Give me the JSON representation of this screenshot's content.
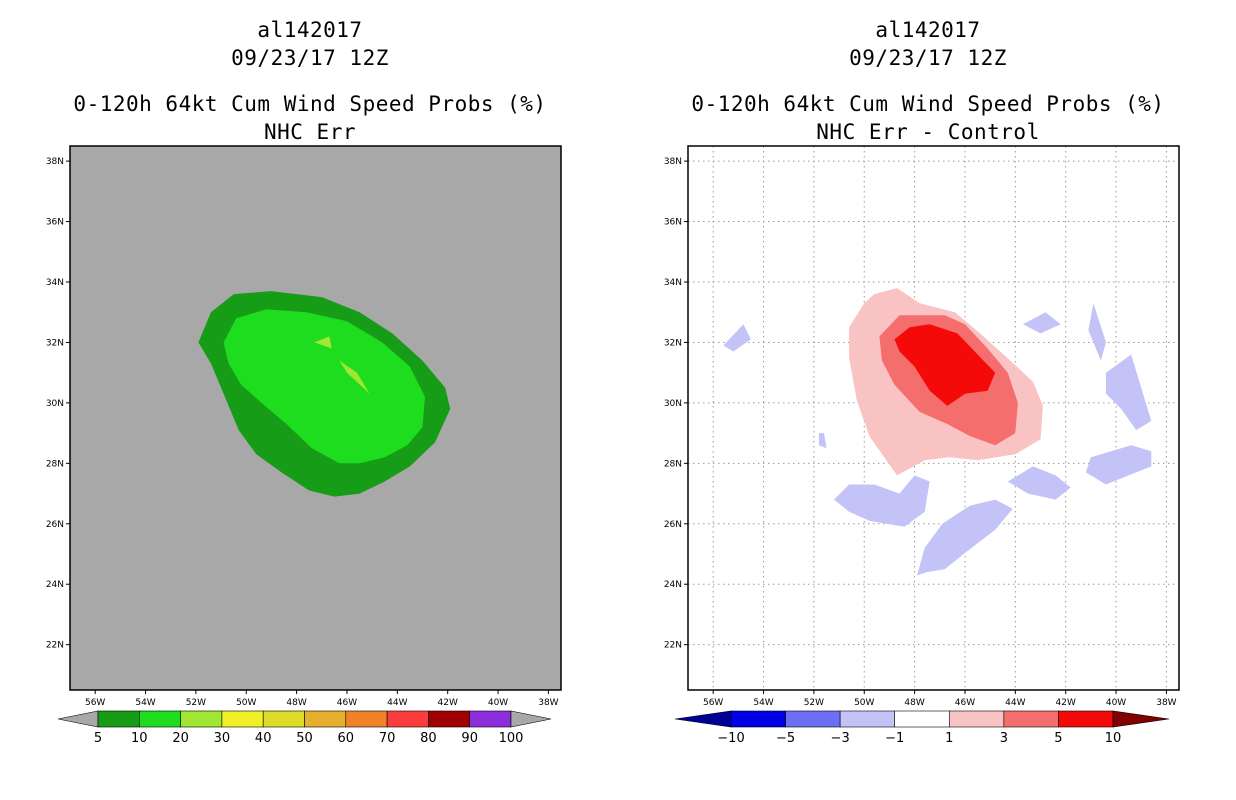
{
  "chart_data": [
    {
      "type": "contour-map",
      "title": [
        "al142017",
        "09/23/17 12Z",
        "0-120h 64kt Cum Wind Speed Probs (%)",
        "NHC Err"
      ],
      "x_axis": {
        "label": "",
        "ticks": [
          "56W",
          "54W",
          "52W",
          "50W",
          "48W",
          "46W",
          "44W",
          "42W",
          "40W",
          "38W"
        ],
        "range_deg": [
          -57,
          -37.5
        ]
      },
      "y_axis": {
        "label": "",
        "ticks": [
          "22N",
          "24N",
          "26N",
          "28N",
          "30N",
          "32N",
          "34N",
          "36N",
          "38N"
        ],
        "range_deg": [
          20.5,
          38.5
        ]
      },
      "background": "#a8a8a8",
      "colorbar": {
        "levels": [
          "5",
          "10",
          "20",
          "30",
          "40",
          "50",
          "60",
          "70",
          "80",
          "90",
          "100"
        ],
        "colors": [
          "#169c16",
          "#1edc1e",
          "#a0e632",
          "#f0f028",
          "#dcdc28",
          "#e6af2d",
          "#f08228",
          "#fa3c3c",
          "#a00000",
          "#8c2edc"
        ],
        "under_color": "#a8a8a8",
        "over_color": "#a8a8a8"
      },
      "contours": [
        {
          "level": "5-10",
          "color": "#169c16",
          "lonlat": [
            [
              -51.9,
              32.0
            ],
            [
              -51.4,
              33.0
            ],
            [
              -50.5,
              33.6
            ],
            [
              -49.0,
              33.7
            ],
            [
              -47.0,
              33.5
            ],
            [
              -45.5,
              33.0
            ],
            [
              -44.2,
              32.3
            ],
            [
              -43.0,
              31.4
            ],
            [
              -42.1,
              30.5
            ],
            [
              -41.9,
              29.8
            ],
            [
              -42.5,
              28.7
            ],
            [
              -43.5,
              27.9
            ],
            [
              -44.5,
              27.4
            ],
            [
              -45.5,
              27.0
            ],
            [
              -46.5,
              26.9
            ],
            [
              -47.5,
              27.1
            ],
            [
              -48.6,
              27.7
            ],
            [
              -49.6,
              28.3
            ],
            [
              -50.3,
              29.1
            ],
            [
              -50.9,
              30.3
            ],
            [
              -51.4,
              31.3
            ]
          ]
        },
        {
          "level": "10-20",
          "color": "#1edc1e",
          "lonlat": [
            [
              -50.9,
              32.0
            ],
            [
              -50.4,
              32.8
            ],
            [
              -49.2,
              33.1
            ],
            [
              -47.6,
              33.0
            ],
            [
              -46.0,
              32.7
            ],
            [
              -44.6,
              32.0
            ],
            [
              -43.5,
              31.2
            ],
            [
              -42.9,
              30.2
            ],
            [
              -43.0,
              29.2
            ],
            [
              -43.6,
              28.6
            ],
            [
              -44.5,
              28.2
            ],
            [
              -45.5,
              28.0
            ],
            [
              -46.3,
              28.0
            ],
            [
              -47.4,
              28.5
            ],
            [
              -48.4,
              29.3
            ],
            [
              -49.4,
              30.0
            ],
            [
              -50.2,
              30.6
            ],
            [
              -50.7,
              31.3
            ]
          ]
        },
        {
          "level": "20-30",
          "color": "#a0e632",
          "lonlat": [
            [
              -46.3,
              31.4
            ],
            [
              -46.0,
              31.0
            ],
            [
              -45.1,
              30.3
            ],
            [
              -45.6,
              31.0
            ]
          ]
        },
        {
          "level": "20-30",
          "color": "#a0e632",
          "lonlat": [
            [
              -47.3,
              32.0
            ],
            [
              -46.7,
              32.2
            ],
            [
              -46.6,
              31.8
            ]
          ]
        }
      ]
    },
    {
      "type": "contour-map",
      "title": [
        "al142017",
        "09/23/17 12Z",
        "0-120h 64kt Cum Wind Speed Probs (%)",
        "NHC Err - Control"
      ],
      "x_axis": {
        "label": "",
        "ticks": [
          "56W",
          "54W",
          "52W",
          "50W",
          "48W",
          "46W",
          "44W",
          "42W",
          "40W",
          "38W"
        ],
        "range_deg": [
          -57,
          -37.5
        ]
      },
      "y_axis": {
        "label": "",
        "ticks": [
          "22N",
          "24N",
          "26N",
          "28N",
          "30N",
          "32N",
          "34N",
          "36N",
          "38N"
        ],
        "range_deg": [
          20.5,
          38.5
        ]
      },
      "background": "#ffffff",
      "grid": true,
      "colorbar": {
        "levels": [
          "-10",
          "-5",
          "-3",
          "-1",
          "1",
          "3",
          "5",
          "10"
        ],
        "colors": [
          "#0000e6",
          "#6e6ef5",
          "#c3c3f8",
          "#ffffff",
          "#fac3c3",
          "#f56e6e",
          "#f50a0a"
        ],
        "under_color": "#000096",
        "over_color": "#820000"
      },
      "contours": [
        {
          "level": "1 to 3",
          "color": "#fac3c3",
          "lonlat": [
            [
              -49.6,
              33.6
            ],
            [
              -48.7,
              33.8
            ],
            [
              -47.8,
              33.3
            ],
            [
              -46.4,
              33.0
            ],
            [
              -45.4,
              32.3
            ],
            [
              -44.2,
              31.4
            ],
            [
              -43.3,
              30.7
            ],
            [
              -42.9,
              29.9
            ],
            [
              -43.0,
              28.8
            ],
            [
              -44.0,
              28.3
            ],
            [
              -45.5,
              28.1
            ],
            [
              -46.6,
              28.2
            ],
            [
              -47.6,
              28.1
            ],
            [
              -48.7,
              27.6
            ],
            [
              -49.8,
              28.9
            ],
            [
              -50.3,
              30.1
            ],
            [
              -50.6,
              31.5
            ],
            [
              -50.6,
              32.5
            ],
            [
              -50.0,
              33.3
            ]
          ]
        },
        {
          "level": "3 to 5",
          "color": "#f56e6e",
          "lonlat": [
            [
              -49.4,
              32.2
            ],
            [
              -48.6,
              32.9
            ],
            [
              -46.8,
              32.9
            ],
            [
              -46.0,
              32.6
            ],
            [
              -45.1,
              31.8
            ],
            [
              -44.3,
              31.0
            ],
            [
              -43.9,
              30.0
            ],
            [
              -44.0,
              29.0
            ],
            [
              -44.8,
              28.6
            ],
            [
              -45.8,
              28.9
            ],
            [
              -46.7,
              29.3
            ],
            [
              -47.8,
              29.7
            ],
            [
              -48.8,
              30.6
            ],
            [
              -49.3,
              31.4
            ]
          ]
        },
        {
          "level": "5 to 10",
          "color": "#f50a0a",
          "lonlat": [
            [
              -48.8,
              32.1
            ],
            [
              -48.2,
              32.5
            ],
            [
              -47.4,
              32.6
            ],
            [
              -46.3,
              32.3
            ],
            [
              -45.5,
              31.6
            ],
            [
              -44.8,
              31.0
            ],
            [
              -45.1,
              30.4
            ],
            [
              -46.0,
              30.3
            ],
            [
              -46.7,
              29.9
            ],
            [
              -47.4,
              30.4
            ],
            [
              -48.0,
              31.2
            ],
            [
              -48.6,
              31.7
            ]
          ]
        },
        {
          "level": "-3 to -1",
          "color": "#c3c3f8",
          "lonlat": [
            [
              -51.2,
              26.8
            ],
            [
              -50.6,
              27.3
            ],
            [
              -49.6,
              27.3
            ],
            [
              -48.6,
              27.0
            ],
            [
              -48.0,
              27.6
            ],
            [
              -47.4,
              27.4
            ],
            [
              -47.6,
              26.4
            ],
            [
              -48.4,
              25.9
            ],
            [
              -49.8,
              26.1
            ],
            [
              -50.6,
              26.4
            ]
          ]
        },
        {
          "level": "-3 to -1",
          "color": "#c3c3f8",
          "lonlat": [
            [
              -47.9,
              24.3
            ],
            [
              -47.6,
              25.2
            ],
            [
              -46.9,
              26.0
            ],
            [
              -45.8,
              26.6
            ],
            [
              -44.8,
              26.8
            ],
            [
              -44.1,
              26.5
            ],
            [
              -44.8,
              25.8
            ],
            [
              -45.9,
              25.1
            ],
            [
              -46.8,
              24.5
            ],
            [
              -47.5,
              24.4
            ]
          ]
        },
        {
          "level": "-3 to -1",
          "color": "#c3c3f8",
          "lonlat": [
            [
              -44.3,
              27.4
            ],
            [
              -43.3,
              27.9
            ],
            [
              -42.4,
              27.6
            ],
            [
              -41.8,
              27.2
            ],
            [
              -42.4,
              26.8
            ],
            [
              -43.5,
              27.0
            ]
          ]
        },
        {
          "level": "-3 to -1",
          "color": "#c3c3f8",
          "lonlat": [
            [
              -41.0,
              28.2
            ],
            [
              -39.4,
              28.6
            ],
            [
              -38.6,
              28.4
            ],
            [
              -38.6,
              27.9
            ],
            [
              -39.5,
              27.6
            ],
            [
              -40.4,
              27.3
            ],
            [
              -41.2,
              27.7
            ]
          ]
        },
        {
          "level": "-3 to -1",
          "color": "#c3c3f8",
          "lonlat": [
            [
              -40.4,
              31.0
            ],
            [
              -39.4,
              31.6
            ],
            [
              -39.0,
              30.5
            ],
            [
              -38.6,
              29.4
            ],
            [
              -39.2,
              29.1
            ],
            [
              -39.8,
              29.8
            ],
            [
              -40.4,
              30.3
            ]
          ]
        },
        {
          "level": "-3 to -1",
          "color": "#c3c3f8",
          "lonlat": [
            [
              -41.1,
              32.4
            ],
            [
              -40.9,
              33.3
            ],
            [
              -40.4,
              32.0
            ],
            [
              -40.6,
              31.4
            ]
          ]
        },
        {
          "level": "-3 to -1",
          "color": "#c3c3f8",
          "lonlat": [
            [
              -43.7,
              32.6
            ],
            [
              -42.8,
              33.0
            ],
            [
              -42.2,
              32.6
            ],
            [
              -43.0,
              32.3
            ]
          ]
        },
        {
          "level": "-3 to -1",
          "color": "#c3c3f8",
          "lonlat": [
            [
              -55.6,
              31.9
            ],
            [
              -54.8,
              32.6
            ],
            [
              -54.5,
              32.1
            ],
            [
              -55.2,
              31.7
            ]
          ]
        },
        {
          "level": "-3 to -1",
          "color": "#c3c3f8",
          "lonlat": [
            [
              -51.8,
              29.0
            ],
            [
              -51.6,
              29.0
            ],
            [
              -51.5,
              28.5
            ],
            [
              -51.8,
              28.6
            ]
          ]
        }
      ]
    }
  ]
}
